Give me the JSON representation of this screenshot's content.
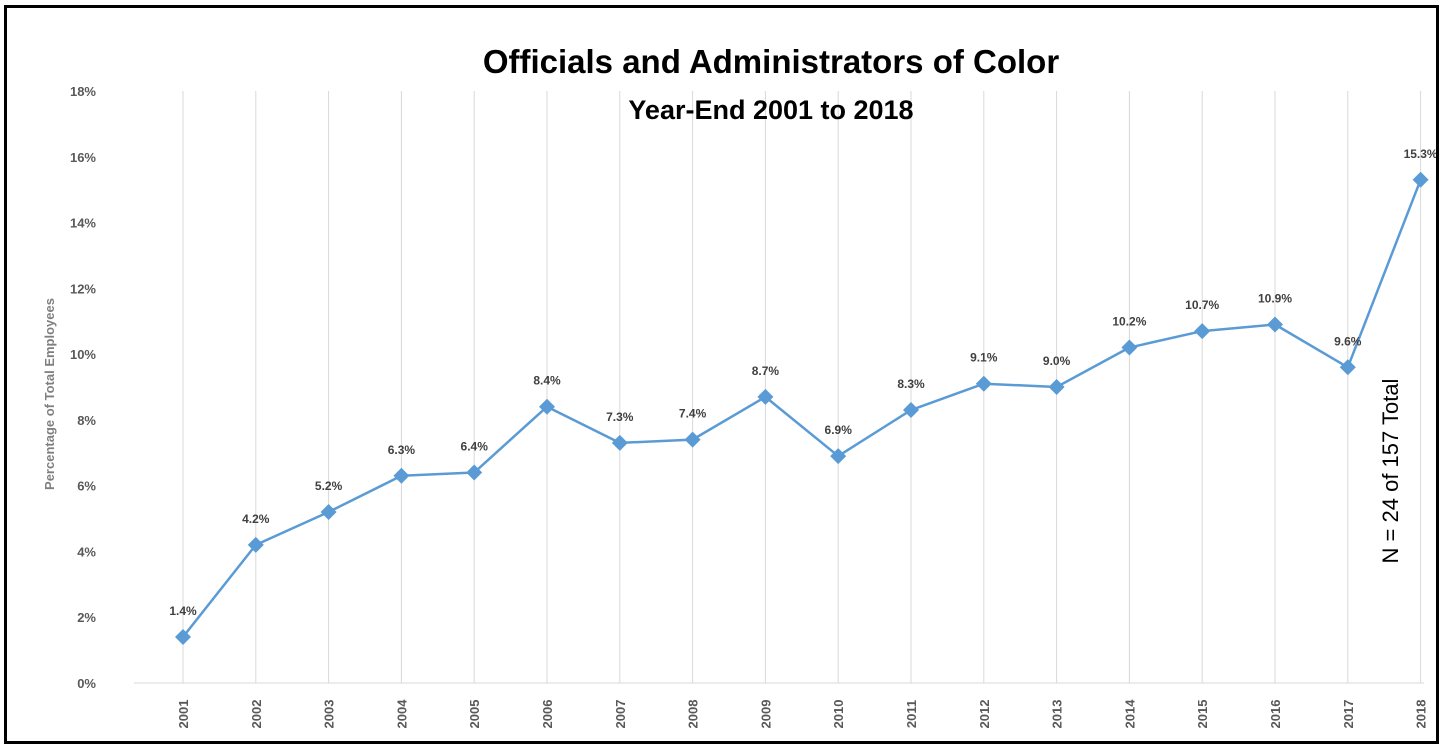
{
  "chart_data": {
    "type": "line",
    "title": "Officials and Administrators of Color",
    "subtitle": "Year-End 2001 to 2018",
    "xlabel": "",
    "ylabel": "Percentage of Total Employees",
    "categories": [
      "2001",
      "2002",
      "2003",
      "2004",
      "2005",
      "2006",
      "2007",
      "2008",
      "2009",
      "2010",
      "2011",
      "2012",
      "2013",
      "2014",
      "2015",
      "2016",
      "2017",
      "2018"
    ],
    "series": [
      {
        "values": [
          1.4,
          4.2,
          5.2,
          6.3,
          6.4,
          8.4,
          7.3,
          7.4,
          8.7,
          6.9,
          8.3,
          9.1,
          9.0,
          10.2,
          10.7,
          10.9,
          9.6,
          15.3
        ],
        "labels": [
          "1.4%",
          "4.2%",
          "5.2%",
          "6.3%",
          "6.4%",
          "8.4%",
          "7.3%",
          "7.4%",
          "8.7%",
          "6.9%",
          "8.3%",
          "9.1%",
          "9.0%",
          "10.2%",
          "10.7%",
          "10.9%",
          "9.6%",
          "15.3%"
        ],
        "color": "#5b9bd5",
        "marker": "diamond"
      }
    ],
    "ylim": [
      0,
      18
    ],
    "yticks": [
      0,
      2,
      4,
      6,
      8,
      10,
      12,
      14,
      16,
      18
    ],
    "ytick_labels": [
      "0%",
      "2%",
      "4%",
      "6%",
      "8%",
      "10%",
      "12%",
      "14%",
      "16%",
      "18%"
    ],
    "grid": "vertical",
    "grid_color": "#d9d9d9",
    "annotation": "N = 24 of 157 Total"
  }
}
